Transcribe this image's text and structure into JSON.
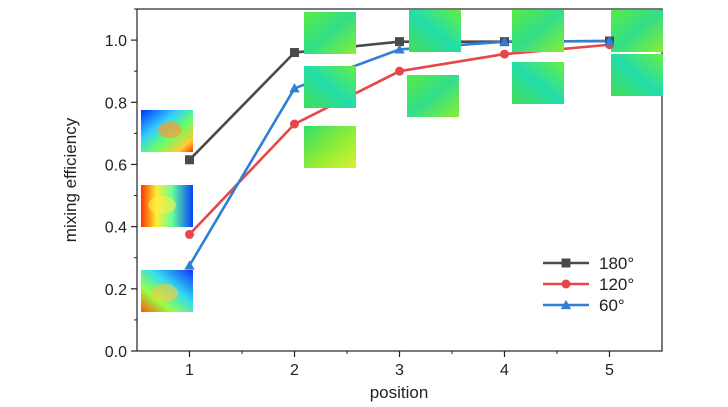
{
  "chart_data": {
    "type": "line",
    "xlabel": "position",
    "ylabel": "mixing efficiency",
    "x": [
      1,
      2,
      3,
      4,
      5
    ],
    "xlim": [
      0.5,
      5.5
    ],
    "ylim": [
      0.0,
      1.1
    ],
    "x_ticks": [
      "1",
      "2",
      "3",
      "4",
      "5"
    ],
    "y_ticks": [
      "0.0",
      "0.2",
      "0.4",
      "0.6",
      "0.8",
      "1.0"
    ],
    "grid": false,
    "legend_position": "bottom-right",
    "series": [
      {
        "name": "180°",
        "color": "#4a4a4a",
        "marker": "square",
        "values": [
          0.615,
          0.96,
          0.995,
          0.995,
          0.997
        ]
      },
      {
        "name": "120°",
        "color": "#e8474a",
        "marker": "circle",
        "values": [
          0.375,
          0.73,
          0.9,
          0.955,
          0.985
        ]
      },
      {
        "name": "60°",
        "color": "#2f7fd6",
        "marker": "triangle",
        "values": [
          0.275,
          0.845,
          0.97,
          0.995,
          0.997
        ]
      }
    ],
    "insets": [
      {
        "name": "contour-map",
        "description_icon": "mixing-contour-image"
      }
    ]
  }
}
